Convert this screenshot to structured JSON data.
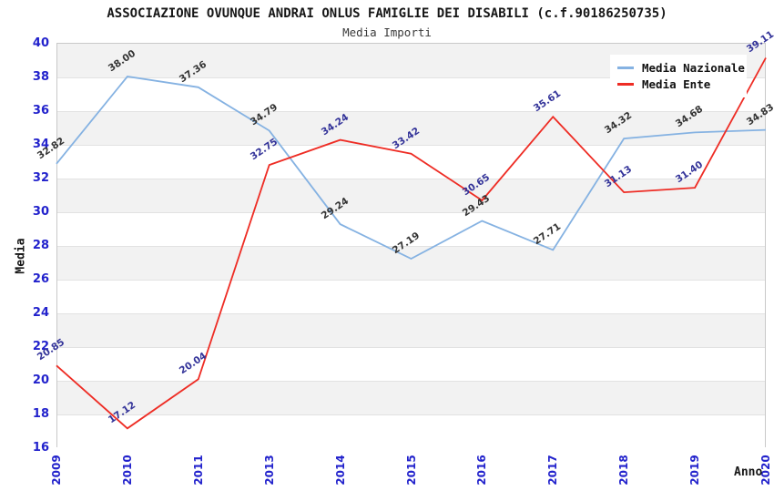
{
  "header": {
    "title": "ASSOCIAZIONE OVUNQUE ANDRAI ONLUS FAMIGLIE DEI DISABILI (c.f.90186250735)",
    "subtitle": "Media Importi"
  },
  "chart_data": {
    "type": "line",
    "title": "ASSOCIAZIONE OVUNQUE ANDRAI ONLUS FAMIGLIE DEI DISABILI (c.f.90186250735)",
    "subtitle": "Media Importi",
    "xlabel": "Anno",
    "ylabel": "Media",
    "categories": [
      "2009",
      "2010",
      "2011",
      "2013",
      "2014",
      "2015",
      "2016",
      "2017",
      "2018",
      "2019",
      "2020"
    ],
    "series": [
      {
        "name": "Media Nazionale",
        "color": "#85b2e2",
        "label_color": "#333333",
        "values": [
          32.82,
          38.0,
          37.36,
          34.79,
          29.24,
          27.19,
          29.43,
          27.71,
          34.32,
          34.68,
          34.83
        ]
      },
      {
        "name": "Media Ente",
        "color": "#ee2c24",
        "label_color": "#333399",
        "values": [
          20.85,
          17.12,
          20.04,
          32.75,
          34.24,
          33.42,
          30.65,
          35.61,
          31.13,
          31.4,
          39.11
        ]
      }
    ],
    "ylim": [
      16,
      40
    ],
    "ytick_step": 2,
    "axis_tick_color": "#2222cc",
    "band_colors": [
      "#f2f2f2",
      "#ffffff"
    ],
    "grid": "horizontal-bands",
    "legend_position": "top-right",
    "value_label_decimals": 2
  }
}
